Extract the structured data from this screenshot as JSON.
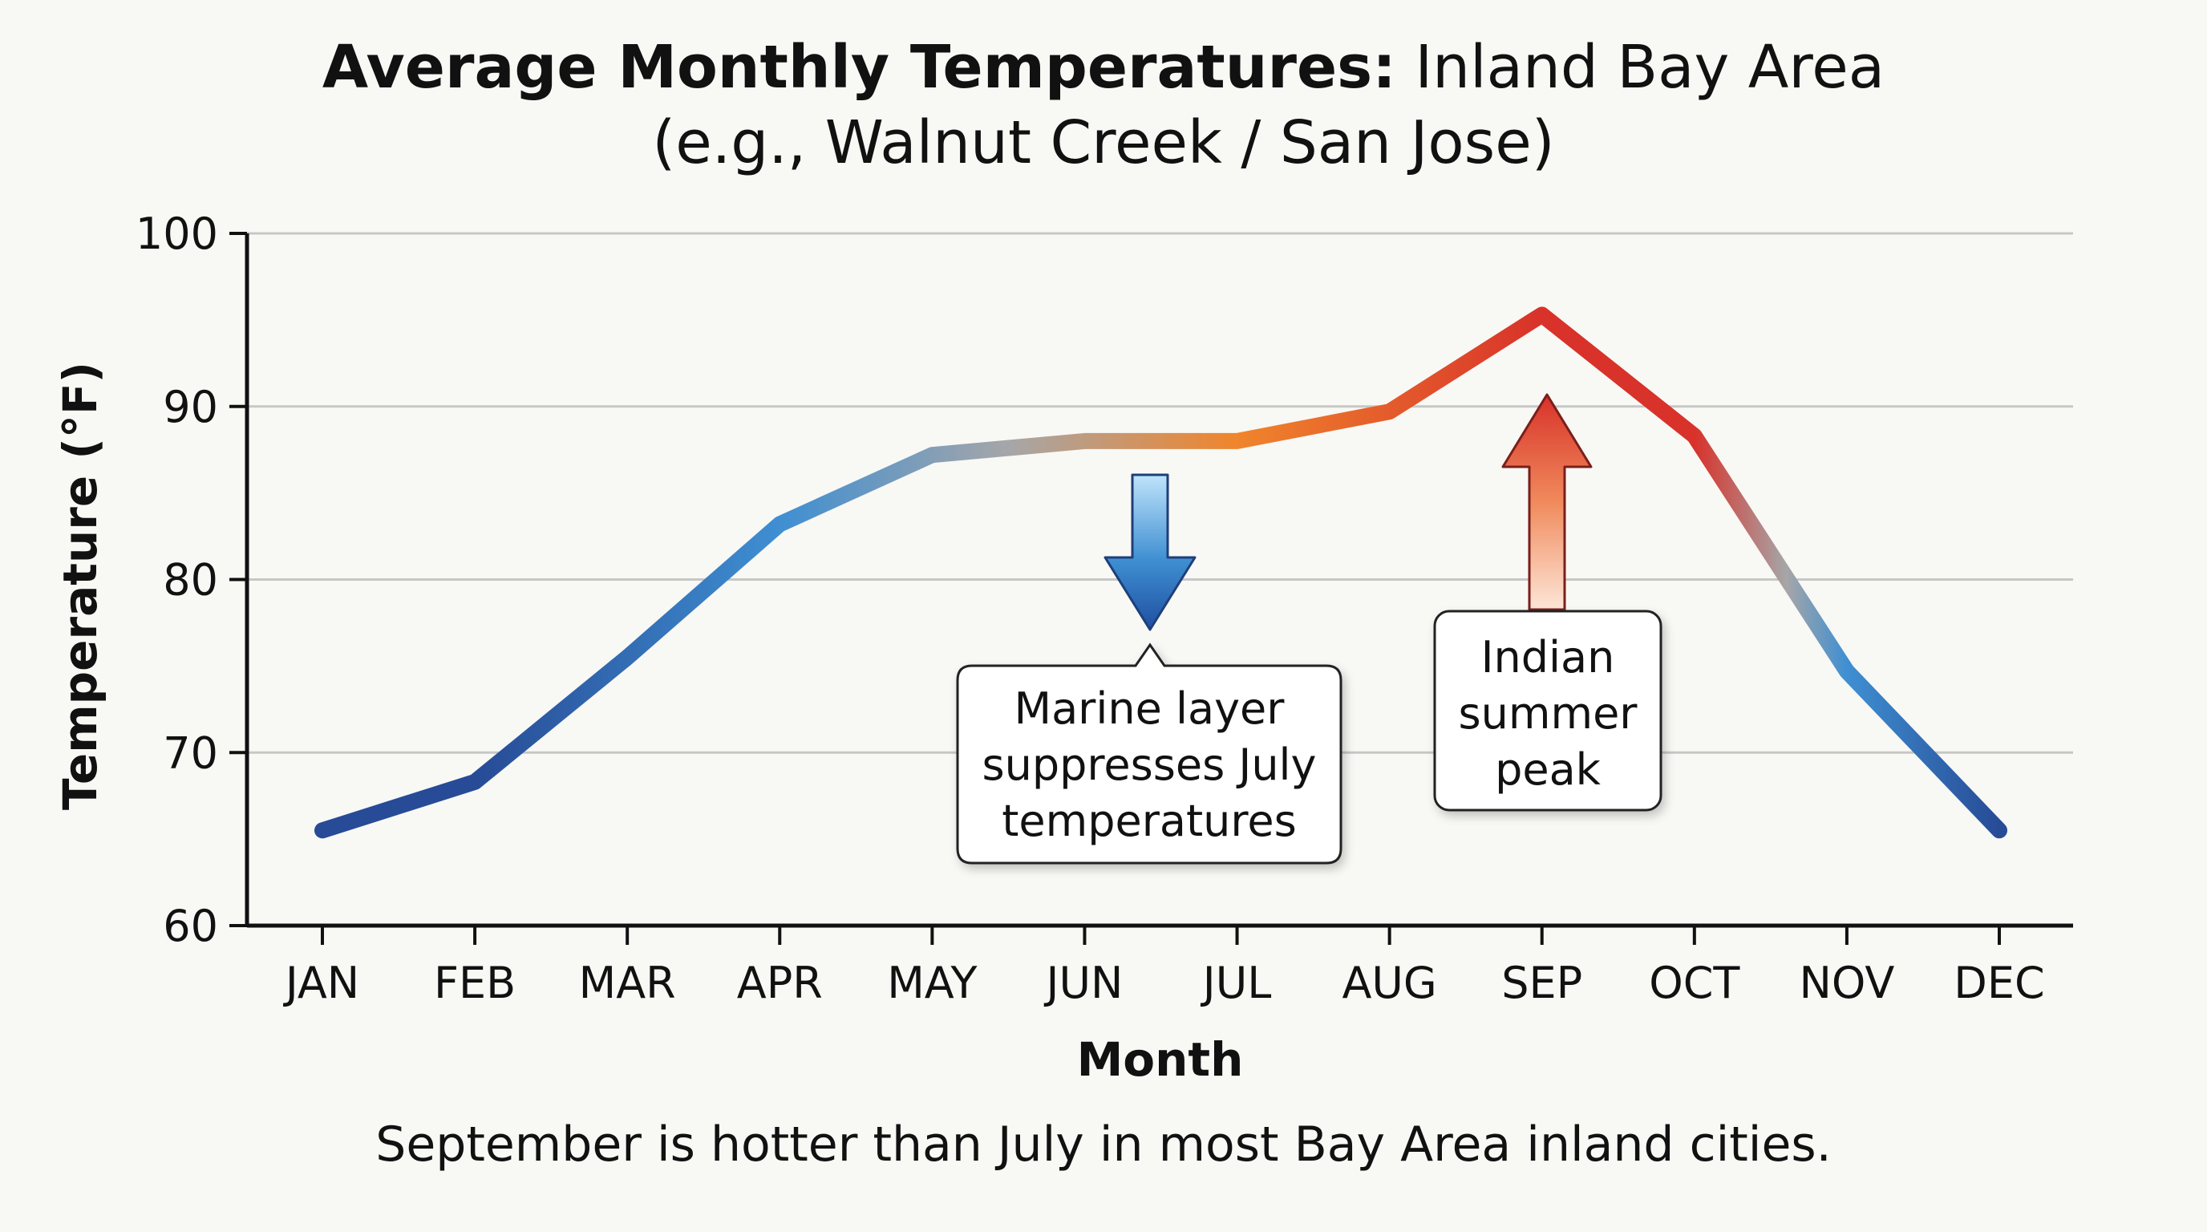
{
  "title": {
    "bold_part": "Average Monthly Temperatures:",
    "regular_part": " Inland Bay Area",
    "subtitle": "(e.g., Walnut Creek / San Jose)"
  },
  "caption": "September is hotter than July in most Bay Area inland cities.",
  "chart_data": {
    "type": "line",
    "xlabel": "Month",
    "ylabel": "Temperature (°F)",
    "categories": [
      "JAN",
      "FEB",
      "MAR",
      "APR",
      "MAY",
      "JUN",
      "JUL",
      "AUG",
      "SEP",
      "OCT",
      "NOV",
      "DEC"
    ],
    "series": [
      {
        "values": [
          65.5,
          68.3,
          75.5,
          83.2,
          87.2,
          88.0,
          88.0,
          89.7,
          95.3,
          88.3,
          74.7,
          65.5
        ]
      }
    ],
    "ylim": [
      60,
      100
    ],
    "yticks": [
      60,
      70,
      80,
      90,
      100
    ],
    "grid": true,
    "colors": {
      "cool_dark": "#274b96",
      "cool": "#3f8fd2",
      "mid": "#a6a6a8",
      "warm": "#f0852c",
      "hot": "#d8322a"
    },
    "annotations": [
      {
        "text_lines": [
          "Marine layer",
          "suppresses July",
          "temperatures"
        ],
        "arrow": "down",
        "arrow_color": "#3f8fd2"
      },
      {
        "text_lines": [
          "Indian",
          "summer",
          "peak"
        ],
        "arrow": "up",
        "arrow_color": "#d8322a"
      }
    ]
  }
}
